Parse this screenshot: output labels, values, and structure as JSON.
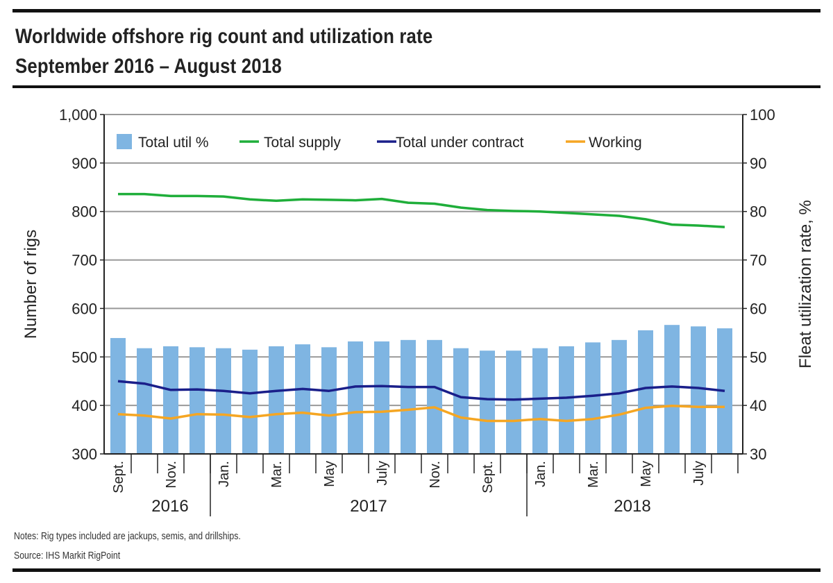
{
  "chart_data": {
    "type": "bar+line",
    "title": "Worldwide offshore rig count and utilization rate",
    "subtitle": "September 2016 – August 2018",
    "ylabel": "Number of rigs",
    "y2label": "Fleat utilization rate, %",
    "ylim": [
      300,
      1000
    ],
    "y2lim": [
      30,
      100
    ],
    "yticks": [
      "300",
      "400",
      "500",
      "600",
      "700",
      "800",
      "900",
      "1,000"
    ],
    "y2ticks": [
      "30",
      "40",
      "50",
      "60",
      "70",
      "80",
      "90",
      "100"
    ],
    "grid": true,
    "legend": "top",
    "xtick_labels": [
      {
        "index": 0,
        "label": "Sept."
      },
      {
        "index": 2,
        "label": "Nov."
      },
      {
        "index": 4,
        "label": "Jan."
      },
      {
        "index": 6,
        "label": "Mar."
      },
      {
        "index": 8,
        "label": "May"
      },
      {
        "index": 10,
        "label": "July"
      },
      {
        "index": 12,
        "label": "Nov."
      },
      {
        "index": 14,
        "label": "Sept."
      },
      {
        "index": 16,
        "label": "Jan."
      },
      {
        "index": 18,
        "label": "Mar."
      },
      {
        "index": 20,
        "label": "May"
      },
      {
        "index": 22,
        "label": "July"
      }
    ],
    "years": [
      {
        "label": "2016",
        "start": 0,
        "end": 3
      },
      {
        "label": "2017",
        "start": 4,
        "end": 15
      },
      {
        "label": "2018",
        "start": 16,
        "end": 23
      }
    ],
    "series": [
      {
        "name": "Total util %",
        "type": "bar",
        "axis": "right",
        "color": "#7fb5e2",
        "values": [
          53.9,
          51.8,
          52.2,
          52.0,
          51.8,
          51.5,
          52.2,
          52.6,
          52.0,
          53.2,
          53.2,
          53.5,
          53.5,
          51.8,
          51.3,
          51.3,
          51.8,
          52.2,
          53.0,
          53.5,
          55.5,
          56.6,
          56.3,
          55.9
        ]
      },
      {
        "name": "Total supply",
        "type": "line",
        "axis": "left",
        "color": "#1fae3a",
        "values": [
          836,
          836,
          832,
          832,
          831,
          825,
          822,
          825,
          824,
          823,
          826,
          818,
          816,
          808,
          803,
          801,
          800,
          797,
          794,
          791,
          784,
          773,
          771,
          768
        ]
      },
      {
        "name": "Total under contract",
        "type": "line",
        "axis": "left",
        "color": "#1a1f8a",
        "values": [
          450,
          445,
          432,
          433,
          430,
          425,
          430,
          434,
          430,
          439,
          440,
          438,
          438,
          417,
          413,
          412,
          414,
          416,
          420,
          425,
          436,
          439,
          436,
          430
        ]
      },
      {
        "name": "Working",
        "type": "line",
        "axis": "left",
        "color": "#f5a623",
        "values": [
          382,
          379,
          373,
          382,
          381,
          376,
          382,
          385,
          379,
          386,
          387,
          391,
          396,
          375,
          368,
          368,
          372,
          368,
          372,
          381,
          395,
          399,
          397,
          397
        ]
      }
    ]
  },
  "notes": "Notes: Rig types included are jackups, semis, and drillships.",
  "source": "Source:  IHS Markit RigPoint"
}
